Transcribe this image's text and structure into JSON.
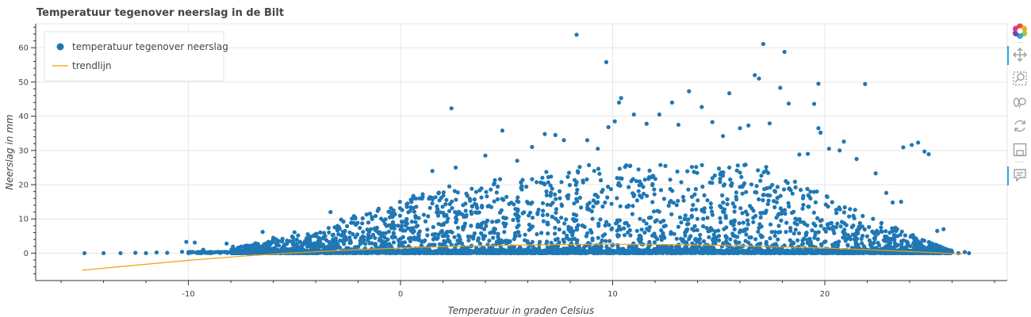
{
  "colors": {
    "points": "#1f77b4",
    "trend": "#f0a00a",
    "grid": "#e6e6e6",
    "text": "#444444"
  },
  "toolbar": {
    "tools": [
      {
        "name": "bokeh-logo-icon",
        "active": false
      },
      {
        "name": "pan-tool-icon",
        "active": true
      },
      {
        "name": "box-zoom-tool-icon",
        "active": false
      },
      {
        "name": "wheel-zoom-tool-icon",
        "active": false
      },
      {
        "name": "reset-tool-icon",
        "active": false
      },
      {
        "name": "save-tool-icon",
        "active": false
      },
      {
        "name": "hover-tool-icon",
        "active": true
      }
    ]
  },
  "chart_data": {
    "type": "scatter",
    "title": "Temperatuur tegenover neerslag in de Bilt",
    "xlabel": "Temperatuur in graden Celsius",
    "ylabel": "Neerslag in mm",
    "xlim": [
      -17.2,
      28.6
    ],
    "ylim": [
      -8,
      67
    ],
    "x_ticks": [
      -10,
      0,
      10,
      20
    ],
    "y_ticks": [
      0,
      10,
      20,
      30,
      40,
      50,
      60
    ],
    "grid": true,
    "legend": {
      "placement": "top-left"
    },
    "series": [
      {
        "name": "temperatuur tegenover neerslag",
        "kind": "scatter",
        "points": [
          [
            -14.9,
            0
          ],
          [
            -14.0,
            0
          ],
          [
            -13.2,
            0
          ],
          [
            -12.5,
            0.1
          ],
          [
            -12.0,
            0
          ],
          [
            -11.5,
            0.2
          ],
          [
            -11.0,
            0.1
          ],
          [
            -10.3,
            0.4
          ],
          [
            -10.1,
            3.3
          ],
          [
            -9.7,
            3.1
          ],
          [
            -9.3,
            1.0
          ],
          [
            -8.2,
            2.8
          ],
          [
            -7.9,
            1.9
          ],
          [
            -6.5,
            6.2
          ],
          [
            -6.0,
            4.5
          ],
          [
            -5.8,
            1.0
          ],
          [
            -5.0,
            6.1
          ],
          [
            -4.5,
            3.5
          ],
          [
            -3.3,
            12.0
          ],
          [
            -2.8,
            9.8
          ],
          [
            -2.2,
            10.8
          ],
          [
            -1.6,
            11.3
          ],
          [
            -0.5,
            12.0
          ],
          [
            0.3,
            13.5
          ],
          [
            0.9,
            16.0
          ],
          [
            1.5,
            24.0
          ],
          [
            2.3,
            19.5
          ],
          [
            2.4,
            42.3
          ],
          [
            2.6,
            25.0
          ],
          [
            4.0,
            28.5
          ],
          [
            4.8,
            35.8
          ],
          [
            5.5,
            27.0
          ],
          [
            6.2,
            31.0
          ],
          [
            6.8,
            34.8
          ],
          [
            7.3,
            34.5
          ],
          [
            7.7,
            33.0
          ],
          [
            8.3,
            63.8
          ],
          [
            8.8,
            33.0
          ],
          [
            9.3,
            30.5
          ],
          [
            9.7,
            55.8
          ],
          [
            9.8,
            36.8
          ],
          [
            10.1,
            38.5
          ],
          [
            10.3,
            44.0
          ],
          [
            10.4,
            45.3
          ],
          [
            11.0,
            40.5
          ],
          [
            11.6,
            37.8
          ],
          [
            12.2,
            40.5
          ],
          [
            12.8,
            44.0
          ],
          [
            13.1,
            37.5
          ],
          [
            13.6,
            47.3
          ],
          [
            14.2,
            42.7
          ],
          [
            14.7,
            38.3
          ],
          [
            15.2,
            34.2
          ],
          [
            15.5,
            46.7
          ],
          [
            16.0,
            36.5
          ],
          [
            16.4,
            37.3
          ],
          [
            16.7,
            52.0
          ],
          [
            16.9,
            51.0
          ],
          [
            17.1,
            61.1
          ],
          [
            17.4,
            37.9
          ],
          [
            17.9,
            48.3
          ],
          [
            18.1,
            58.8
          ],
          [
            18.3,
            43.7
          ],
          [
            18.8,
            28.8
          ],
          [
            19.2,
            29.0
          ],
          [
            19.5,
            43.6
          ],
          [
            19.7,
            49.5
          ],
          [
            19.7,
            36.5
          ],
          [
            19.8,
            35.2
          ],
          [
            20.2,
            30.5
          ],
          [
            20.7,
            30.0
          ],
          [
            20.9,
            32.6
          ],
          [
            21.5,
            27.5
          ],
          [
            21.9,
            49.4
          ],
          [
            22.4,
            23.3
          ],
          [
            22.9,
            17.6
          ],
          [
            23.2,
            14.8
          ],
          [
            23.6,
            15.0
          ],
          [
            23.7,
            30.9
          ],
          [
            24.1,
            31.6
          ],
          [
            24.4,
            32.3
          ],
          [
            24.7,
            29.7
          ],
          [
            24.9,
            28.9
          ],
          [
            25.3,
            6.5
          ],
          [
            25.6,
            7.0
          ],
          [
            26.0,
            0.2
          ],
          [
            26.3,
            0
          ],
          [
            26.6,
            0.3
          ],
          [
            26.8,
            0
          ]
        ]
      },
      {
        "name": "trendlijn",
        "kind": "line",
        "x": [
          -15,
          -12.5,
          -10,
          -7.5,
          -5,
          -2.5,
          0,
          2.5,
          5,
          7.5,
          10,
          12.5,
          15,
          17.5,
          20,
          22.5,
          25,
          26.5
        ],
        "y": [
          -5.0,
          -3.5,
          -2.1,
          -0.9,
          0.1,
          0.9,
          1.5,
          2.0,
          2.3,
          2.5,
          2.6,
          2.5,
          2.3,
          1.9,
          1.5,
          0.9,
          0.2,
          -0.3
        ]
      }
    ]
  }
}
